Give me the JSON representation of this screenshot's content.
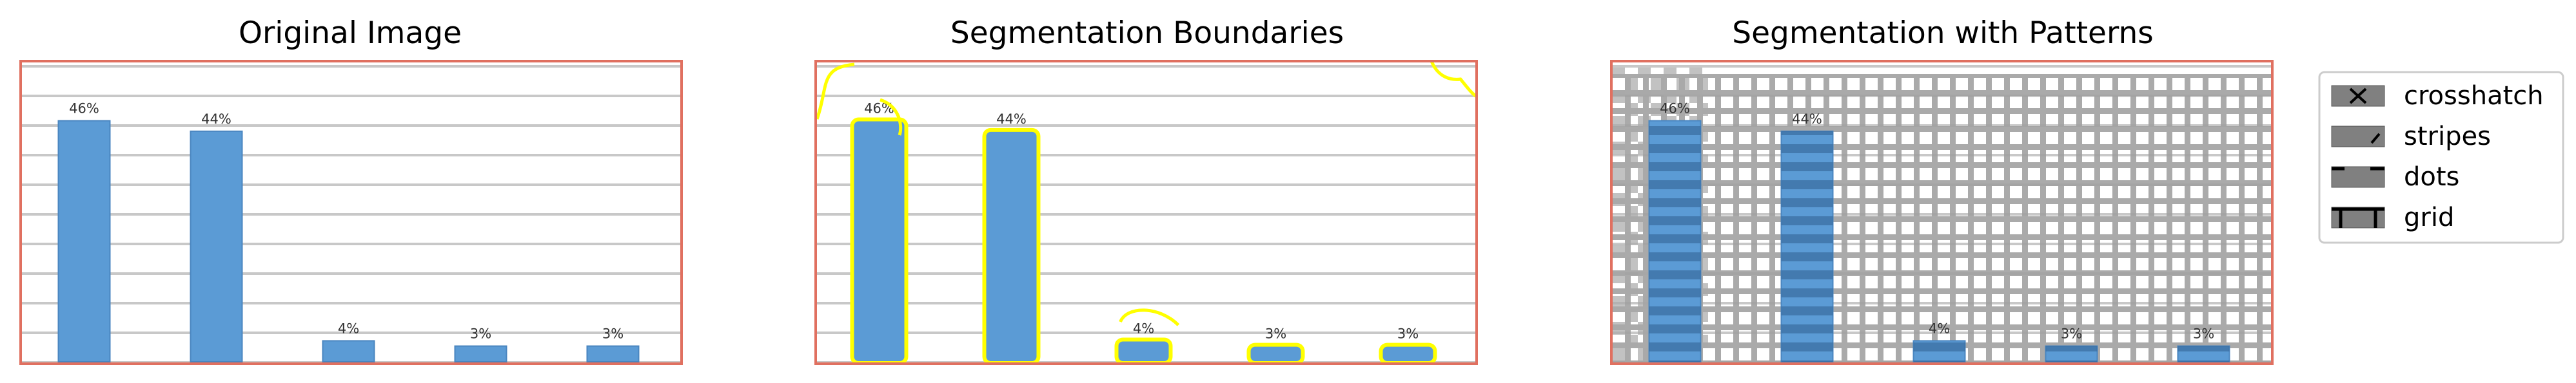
{
  "figure": {
    "panel_titles": [
      "Original Image",
      "Segmentation Boundaries",
      "Segmentation with Patterns"
    ]
  },
  "legend": {
    "items": [
      {
        "label": "crosshatch",
        "icon": "crosshatch-swatch"
      },
      {
        "label": "stripes",
        "icon": "stripes-swatch"
      },
      {
        "label": "dots",
        "icon": "dots-swatch"
      },
      {
        "label": "grid",
        "icon": "grid-swatch"
      }
    ]
  },
  "colors": {
    "bar": "#5b9bd5",
    "bar_edge": "#4a86c0",
    "frame": "#e07060",
    "gridline": "#c8c8c8",
    "boundary": "#ffff00",
    "pattern": "#a0a0a0"
  },
  "chart_data": {
    "type": "bar",
    "categories": [
      "",
      "",
      "",
      "",
      ""
    ],
    "values": [
      46,
      44,
      4,
      3,
      3
    ],
    "data_labels": [
      "46%",
      "44%",
      "4%",
      "3%",
      "3%"
    ],
    "ylim": [
      0,
      50
    ],
    "grid": true,
    "title": "",
    "xlabel": "",
    "ylabel": ""
  }
}
